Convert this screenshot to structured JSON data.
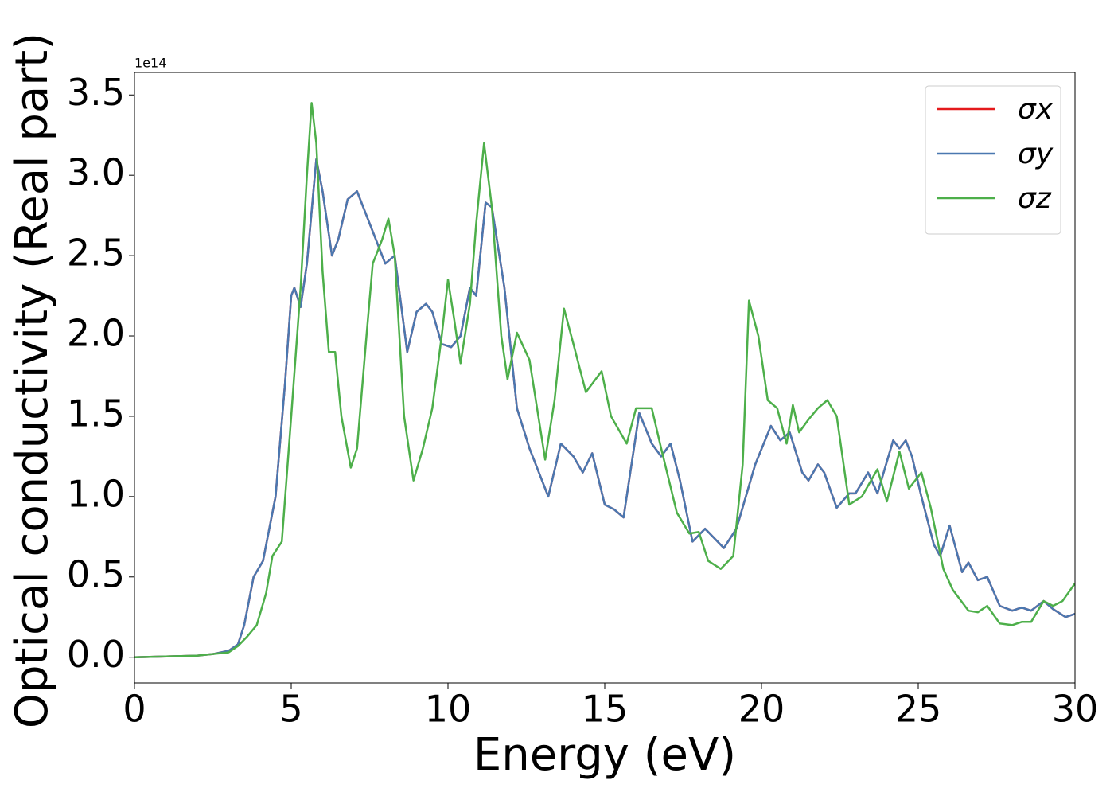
{
  "chart_data": {
    "type": "line",
    "xlabel": "Energy (eV)",
    "ylabel": "Optical conductivity (Real part)",
    "y_offset_label": "1e14",
    "xlim": [
      0,
      30
    ],
    "xticks": [
      0,
      5,
      10,
      15,
      20,
      25,
      30
    ],
    "ylim": [
      -0.16,
      3.64
    ],
    "yticks": [
      {
        "value": 0,
        "label": "0.0"
      },
      {
        "value": 0.5,
        "label": "0.5"
      },
      {
        "value": 1,
        "label": "1.0"
      },
      {
        "value": 1.5,
        "label": "1.5"
      },
      {
        "value": 2,
        "label": "2.0"
      },
      {
        "value": 2.5,
        "label": "2.5"
      },
      {
        "value": 3,
        "label": "3.0"
      },
      {
        "value": 3.5,
        "label": "3.5"
      }
    ],
    "legend": "upper right",
    "series": [
      {
        "name": "σx",
        "color": "#e41a1c",
        "x": [
          0,
          2,
          2.5,
          3,
          3.3,
          3.5,
          3.8,
          4.1,
          4.5,
          4.8,
          5.0,
          5.1,
          5.3,
          5.5,
          5.8,
          6.0,
          6.3,
          6.5,
          6.8,
          7.1,
          7.3,
          7.6,
          8.0,
          8.3,
          8.7,
          9.0,
          9.3,
          9.5,
          9.8,
          10.1,
          10.4,
          10.7,
          10.9,
          11.2,
          11.4,
          11.8,
          12.2,
          12.6,
          13.0,
          13.2,
          13.6,
          14.0,
          14.3,
          14.6,
          15.0,
          15.3,
          15.6,
          16.1,
          16.5,
          16.8,
          17.1,
          17.4,
          17.8,
          18.2,
          18.8,
          19.2,
          19.8,
          20.3,
          20.6,
          20.9,
          21.3,
          21.5,
          21.8,
          22.0,
          22.4,
          22.8,
          23.0,
          23.4,
          23.7,
          24.2,
          24.4,
          24.6,
          24.8,
          25.1,
          25.5,
          25.7,
          26.0,
          26.4,
          26.6,
          26.9,
          27.2,
          27.6,
          28.0,
          28.3,
          28.6,
          29.0,
          29.3,
          29.7,
          30
        ],
        "values": [
          0,
          0.01,
          0.02,
          0.04,
          0.08,
          0.2,
          0.5,
          0.6,
          1.0,
          1.7,
          2.25,
          2.3,
          2.18,
          2.45,
          3.1,
          2.9,
          2.5,
          2.6,
          2.85,
          2.9,
          2.8,
          2.65,
          2.45,
          2.5,
          1.9,
          2.15,
          2.2,
          2.15,
          1.95,
          1.93,
          2.0,
          2.3,
          2.25,
          2.83,
          2.8,
          2.3,
          1.55,
          1.3,
          1.1,
          1.0,
          1.33,
          1.25,
          1.15,
          1.27,
          0.95,
          0.92,
          0.87,
          1.52,
          1.33,
          1.25,
          1.33,
          1.1,
          0.72,
          0.8,
          0.68,
          0.8,
          1.2,
          1.44,
          1.35,
          1.4,
          1.15,
          1.1,
          1.2,
          1.15,
          0.93,
          1.02,
          1.02,
          1.15,
          1.02,
          1.35,
          1.3,
          1.35,
          1.25,
          1.0,
          0.7,
          0.63,
          0.82,
          0.53,
          0.59,
          0.48,
          0.5,
          0.32,
          0.29,
          0.31,
          0.29,
          0.35,
          0.3,
          0.25,
          0.27
        ]
      },
      {
        "name": "σy",
        "color": "#4a78b0",
        "x": [
          0,
          2,
          2.5,
          3,
          3.3,
          3.5,
          3.8,
          4.1,
          4.5,
          4.8,
          5.0,
          5.1,
          5.3,
          5.5,
          5.8,
          6.0,
          6.3,
          6.5,
          6.8,
          7.1,
          7.3,
          7.6,
          8.0,
          8.3,
          8.7,
          9.0,
          9.3,
          9.5,
          9.8,
          10.1,
          10.4,
          10.7,
          10.9,
          11.2,
          11.4,
          11.8,
          12.2,
          12.6,
          13.0,
          13.2,
          13.6,
          14.0,
          14.3,
          14.6,
          15.0,
          15.3,
          15.6,
          16.1,
          16.5,
          16.8,
          17.1,
          17.4,
          17.8,
          18.2,
          18.8,
          19.2,
          19.8,
          20.3,
          20.6,
          20.9,
          21.3,
          21.5,
          21.8,
          22.0,
          22.4,
          22.8,
          23.0,
          23.4,
          23.7,
          24.2,
          24.4,
          24.6,
          24.8,
          25.1,
          25.5,
          25.7,
          26.0,
          26.4,
          26.6,
          26.9,
          27.2,
          27.6,
          28.0,
          28.3,
          28.6,
          29.0,
          29.3,
          29.7,
          30
        ],
        "values": [
          0,
          0.01,
          0.02,
          0.04,
          0.08,
          0.2,
          0.5,
          0.6,
          1.0,
          1.7,
          2.25,
          2.3,
          2.18,
          2.45,
          3.1,
          2.9,
          2.5,
          2.6,
          2.85,
          2.9,
          2.8,
          2.65,
          2.45,
          2.5,
          1.9,
          2.15,
          2.2,
          2.15,
          1.95,
          1.93,
          2.0,
          2.3,
          2.25,
          2.83,
          2.8,
          2.3,
          1.55,
          1.3,
          1.1,
          1.0,
          1.33,
          1.25,
          1.15,
          1.27,
          0.95,
          0.92,
          0.87,
          1.52,
          1.33,
          1.25,
          1.33,
          1.1,
          0.72,
          0.8,
          0.68,
          0.8,
          1.2,
          1.44,
          1.35,
          1.4,
          1.15,
          1.1,
          1.2,
          1.15,
          0.93,
          1.02,
          1.02,
          1.15,
          1.02,
          1.35,
          1.3,
          1.35,
          1.25,
          1.0,
          0.7,
          0.63,
          0.82,
          0.53,
          0.59,
          0.48,
          0.5,
          0.32,
          0.29,
          0.31,
          0.29,
          0.35,
          0.3,
          0.25,
          0.27
        ]
      },
      {
        "name": "σz",
        "color": "#4daf4a",
        "x": [
          0,
          2,
          3,
          3.3,
          3.6,
          3.9,
          4.2,
          4.4,
          4.7,
          5.0,
          5.3,
          5.5,
          5.65,
          5.8,
          6.0,
          6.2,
          6.4,
          6.6,
          6.9,
          7.1,
          7.4,
          7.6,
          7.9,
          8.1,
          8.3,
          8.6,
          8.9,
          9.2,
          9.5,
          9.8,
          10.0,
          10.2,
          10.4,
          10.7,
          10.9,
          11.15,
          11.4,
          11.7,
          11.9,
          12.2,
          12.6,
          13.1,
          13.4,
          13.7,
          14.0,
          14.4,
          14.9,
          15.2,
          15.7,
          16.0,
          16.2,
          16.5,
          16.8,
          17.3,
          17.7,
          18.0,
          18.3,
          18.7,
          19.1,
          19.4,
          19.6,
          19.9,
          20.2,
          20.5,
          20.8,
          21.0,
          21.2,
          21.5,
          21.8,
          22.1,
          22.4,
          22.8,
          23.2,
          23.7,
          24.0,
          24.4,
          24.7,
          25.1,
          25.4,
          25.8,
          26.1,
          26.6,
          26.9,
          27.2,
          27.6,
          28.0,
          28.3,
          28.6,
          29.0,
          29.3,
          29.6,
          30
        ],
        "values": [
          0,
          0.01,
          0.03,
          0.07,
          0.13,
          0.2,
          0.4,
          0.63,
          0.72,
          1.5,
          2.3,
          3.0,
          3.45,
          3.2,
          2.4,
          1.9,
          1.9,
          1.5,
          1.18,
          1.3,
          2.0,
          2.45,
          2.6,
          2.73,
          2.5,
          1.5,
          1.1,
          1.3,
          1.55,
          2.0,
          2.35,
          2.1,
          1.83,
          2.2,
          2.7,
          3.2,
          2.8,
          2.0,
          1.73,
          2.02,
          1.85,
          1.23,
          1.6,
          2.17,
          1.95,
          1.65,
          1.78,
          1.5,
          1.33,
          1.55,
          1.55,
          1.55,
          1.3,
          0.9,
          0.77,
          0.78,
          0.6,
          0.55,
          0.63,
          1.2,
          2.22,
          2.0,
          1.6,
          1.55,
          1.33,
          1.57,
          1.4,
          1.48,
          1.55,
          1.6,
          1.5,
          0.95,
          1.0,
          1.17,
          0.97,
          1.28,
          1.05,
          1.15,
          0.93,
          0.55,
          0.42,
          0.29,
          0.28,
          0.32,
          0.21,
          0.2,
          0.22,
          0.22,
          0.35,
          0.32,
          0.35,
          0.46
        ]
      }
    ]
  }
}
